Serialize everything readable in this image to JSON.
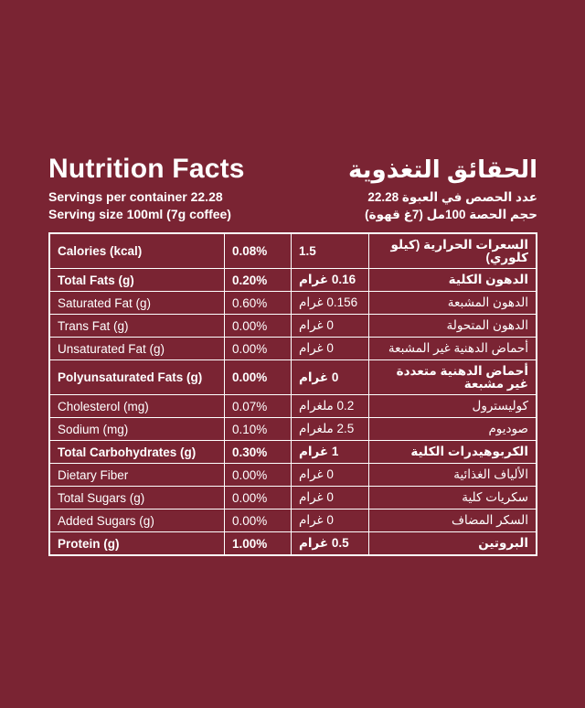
{
  "header": {
    "title_en": "Nutrition Facts",
    "title_ar": "الحقائق التغذوية",
    "servings_en": "Servings per container 22.28",
    "servings_ar": "عدد الحصص في العبوة 22.28",
    "serving_size_en": "Serving size 100ml (7g coffee)",
    "serving_size_ar": "حجم الحصة 100مل (7غ قهوة)"
  },
  "rows": [
    {
      "name_en": "Calories (kcal)",
      "percent": "0.08%",
      "value": "1.5",
      "name_ar": "السعرات الحرارية (كيلو كلوري)",
      "bold": true
    },
    {
      "name_en": "Total Fats (g)",
      "percent": "0.20%",
      "value": "0.16 غرام",
      "name_ar": "الدهون الكلية",
      "bold": true
    },
    {
      "name_en": "Saturated Fat (g)",
      "percent": "0.60%",
      "value": "0.156 غرام",
      "name_ar": "الدهون المشبعة",
      "bold": false
    },
    {
      "name_en": "Trans Fat (g)",
      "percent": "0.00%",
      "value": "0 غرام",
      "name_ar": "الدهون المتحولة",
      "bold": false
    },
    {
      "name_en": "Unsaturated Fat (g)",
      "percent": "0.00%",
      "value": "0 غرام",
      "name_ar": "أحماض الدهنية غير المشبعة",
      "bold": false
    },
    {
      "name_en": "Polyunsaturated Fats (g)",
      "percent": "0.00%",
      "value": "0 غرام",
      "name_ar": "أحماض الدهنية متعددة غير مشبعة",
      "bold": true
    },
    {
      "name_en": "Cholesterol (mg)",
      "percent": "0.07%",
      "value": "0.2 ملغرام",
      "name_ar": "كوليسترول",
      "bold": false
    },
    {
      "name_en": "Sodium (mg)",
      "percent": "0.10%",
      "value": "2.5 ملغرام",
      "name_ar": "صوديوم",
      "bold": false
    },
    {
      "name_en": "Total Carbohydrates (g)",
      "percent": "0.30%",
      "value": "1 غرام",
      "name_ar": "الكربوهيدرات الكلية",
      "bold": true
    },
    {
      "name_en": "Dietary Fiber",
      "percent": "0.00%",
      "value": "0 غرام",
      "name_ar": "الألياف الغذائية",
      "bold": false
    },
    {
      "name_en": "Total Sugars (g)",
      "percent": "0.00%",
      "value": "0 غرام",
      "name_ar": "سكريات كلية",
      "bold": false
    },
    {
      "name_en": "Added Sugars (g)",
      "percent": "0.00%",
      "value": "0 غرام",
      "name_ar": "السكر المضاف",
      "bold": false
    },
    {
      "name_en": "Protein (g)",
      "percent": "1.00%",
      "value": "0.5 غرام",
      "name_ar": "البروتين",
      "bold": true
    }
  ],
  "colors": {
    "background": "#7a2433",
    "foreground": "#ffffff"
  }
}
